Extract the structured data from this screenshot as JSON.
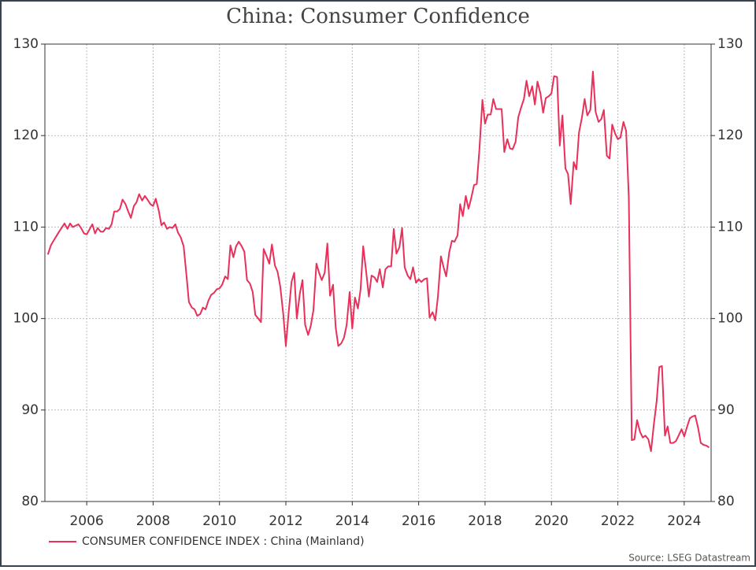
{
  "chart_data": {
    "type": "line",
    "title": "China: Consumer Confidence",
    "source": "Source: LSEG Datastream",
    "x": [
      2004.83,
      2004.92,
      2005.0,
      2005.17,
      2005.33,
      2005.42,
      2005.5,
      2005.58,
      2005.75,
      2005.83,
      2005.92,
      2006.0,
      2006.17,
      2006.25,
      2006.33,
      2006.42,
      2006.5,
      2006.58,
      2006.67,
      2006.75,
      2006.83,
      2006.92,
      2007.0,
      2007.08,
      2007.17,
      2007.25,
      2007.33,
      2007.42,
      2007.5,
      2007.58,
      2007.67,
      2007.75,
      2007.83,
      2007.92,
      2008.0,
      2008.08,
      2008.17,
      2008.25,
      2008.33,
      2008.42,
      2008.5,
      2008.58,
      2008.67,
      2008.75,
      2008.83,
      2008.92,
      2009.0,
      2009.08,
      2009.17,
      2009.25,
      2009.33,
      2009.42,
      2009.5,
      2009.58,
      2009.67,
      2009.75,
      2009.83,
      2009.92,
      2010.0,
      2010.08,
      2010.17,
      2010.25,
      2010.33,
      2010.42,
      2010.5,
      2010.58,
      2010.67,
      2010.75,
      2010.83,
      2010.92,
      2011.0,
      2011.08,
      2011.17,
      2011.25,
      2011.33,
      2011.42,
      2011.5,
      2011.58,
      2011.67,
      2011.75,
      2011.83,
      2011.92,
      2012.0,
      2012.08,
      2012.17,
      2012.25,
      2012.33,
      2012.42,
      2012.5,
      2012.58,
      2012.67,
      2012.75,
      2012.83,
      2012.92,
      2013.0,
      2013.08,
      2013.17,
      2013.25,
      2013.33,
      2013.42,
      2013.5,
      2013.58,
      2013.67,
      2013.75,
      2013.83,
      2013.92,
      2014.0,
      2014.08,
      2014.17,
      2014.25,
      2014.33,
      2014.42,
      2014.5,
      2014.58,
      2014.67,
      2014.75,
      2014.83,
      2014.92,
      2015.0,
      2015.08,
      2015.17,
      2015.25,
      2015.33,
      2015.42,
      2015.5,
      2015.58,
      2015.67,
      2015.75,
      2015.83,
      2015.92,
      2016.0,
      2016.08,
      2016.17,
      2016.25,
      2016.33,
      2016.42,
      2016.5,
      2016.58,
      2016.67,
      2016.75,
      2016.83,
      2016.92,
      2017.0,
      2017.08,
      2017.17,
      2017.25,
      2017.33,
      2017.42,
      2017.5,
      2017.58,
      2017.67,
      2017.75,
      2017.83,
      2017.92,
      2018.0,
      2018.08,
      2018.17,
      2018.25,
      2018.33,
      2018.42,
      2018.5,
      2018.58,
      2018.67,
      2018.75,
      2018.83,
      2018.92,
      2019.0,
      2019.08,
      2019.17,
      2019.25,
      2019.33,
      2019.42,
      2019.5,
      2019.58,
      2019.67,
      2019.75,
      2019.83,
      2019.92,
      2020.0,
      2020.08,
      2020.17,
      2020.25,
      2020.33,
      2020.42,
      2020.5,
      2020.58,
      2020.67,
      2020.75,
      2020.83,
      2020.92,
      2021.0,
      2021.08,
      2021.17,
      2021.25,
      2021.33,
      2021.42,
      2021.5,
      2021.58,
      2021.67,
      2021.75,
      2021.83,
      2021.92,
      2022.0,
      2022.08,
      2022.17,
      2022.25,
      2022.33,
      2022.42,
      2022.5,
      2022.58,
      2022.67,
      2022.75,
      2022.83,
      2022.92,
      2023.0,
      2023.08,
      2023.17,
      2023.25,
      2023.33,
      2023.42,
      2023.5,
      2023.58,
      2023.67,
      2023.75,
      2023.83,
      2023.92,
      2024.0,
      2024.08,
      2024.17,
      2024.25,
      2024.33,
      2024.42,
      2024.5,
      2024.58,
      2024.67,
      2024.75
    ],
    "series": [
      {
        "name": "CONSUMER CONFIDENCE INDEX : China (Mainland)",
        "color": "#e8305a",
        "values": [
          107,
          108,
          108.5,
          109.5,
          110.4,
          109.8,
          110.4,
          110,
          110.3,
          109.9,
          109.3,
          109.2,
          110.3,
          109.3,
          109.9,
          109.5,
          109.5,
          109.9,
          109.8,
          110.3,
          111.7,
          111.7,
          112,
          113,
          112.5,
          111.7,
          111,
          112.3,
          112.7,
          113.6,
          112.9,
          113.4,
          113,
          112.5,
          112.3,
          113.1,
          111.8,
          110.2,
          110.5,
          109.8,
          110,
          109.9,
          110.3,
          109.4,
          108.9,
          107.9,
          104.9,
          101.8,
          101.2,
          101,
          100.3,
          100.5,
          101.2,
          101,
          102,
          102.6,
          102.8,
          103.2,
          103.3,
          103.7,
          104.6,
          104.3,
          108,
          106.7,
          107.9,
          108.4,
          107.9,
          107.3,
          104.2,
          103.8,
          102.9,
          100.4,
          100,
          99.6,
          107.6,
          106.8,
          106,
          108.1,
          105.8,
          105.1,
          103.5,
          100.5,
          97,
          100.5,
          104,
          105,
          100,
          102.7,
          104.2,
          99.3,
          98.2,
          99.2,
          100.9,
          106,
          105,
          104.2,
          105,
          108.2,
          102.5,
          103.7,
          99,
          97,
          97.3,
          97.9,
          99.3,
          102.9,
          98.9,
          102.3,
          101.1,
          103.2,
          107.9,
          105.1,
          102.4,
          104.7,
          104.5,
          104,
          105.4,
          103.4,
          105.4,
          105.7,
          105.7,
          109.8,
          107.1,
          107.8,
          109.9,
          105.6,
          104.7,
          104.3,
          105.6,
          103.9,
          104.3,
          104,
          104.3,
          104.4,
          100.1,
          100.7,
          99.8,
          102.4,
          106.8,
          105.6,
          104.6,
          107.2,
          108.5,
          108.4,
          109.1,
          112.5,
          111.2,
          113.4,
          112,
          113.1,
          114.6,
          114.7,
          118.5,
          123.9,
          121.3,
          122.3,
          122.3,
          124,
          122.9,
          122.9,
          122.9,
          118.2,
          119.6,
          118.6,
          118.5,
          119.3,
          122,
          123,
          124,
          126,
          124.3,
          125.4,
          123.4,
          125.9,
          124.6,
          122.5,
          124.1,
          124.3,
          124.6,
          126.5,
          126.4,
          118.9,
          122.2,
          116.4,
          115.8,
          112.5,
          117.1,
          116.3,
          120.3,
          122,
          124,
          122.2,
          122.8,
          127,
          122.6,
          121.5,
          121.8,
          122.8,
          117.8,
          117.5,
          121.2,
          120.2,
          119.6,
          119.8,
          121.5,
          120.5,
          113.2,
          86.7,
          86.8,
          88.9,
          87.6,
          87,
          87.2,
          86.8,
          85.5,
          88.3,
          91,
          94.7,
          94.8,
          87.2,
          88.2,
          86.4,
          86.4,
          86.6,
          87.2,
          87.9,
          87.1,
          88.1,
          89.1,
          89.3,
          89.4,
          88,
          86.4,
          86.2,
          86.1,
          85.9
        ]
      }
    ],
    "xlim": [
      2004.74,
      2024.81
    ],
    "xticks": [
      2006,
      2008,
      2010,
      2012,
      2014,
      2016,
      2018,
      2020,
      2022,
      2024
    ],
    "ylim": [
      80,
      130
    ],
    "yticks": [
      80,
      90,
      100,
      110,
      120,
      130
    ],
    "grid": true,
    "legend": "bottom-left"
  }
}
